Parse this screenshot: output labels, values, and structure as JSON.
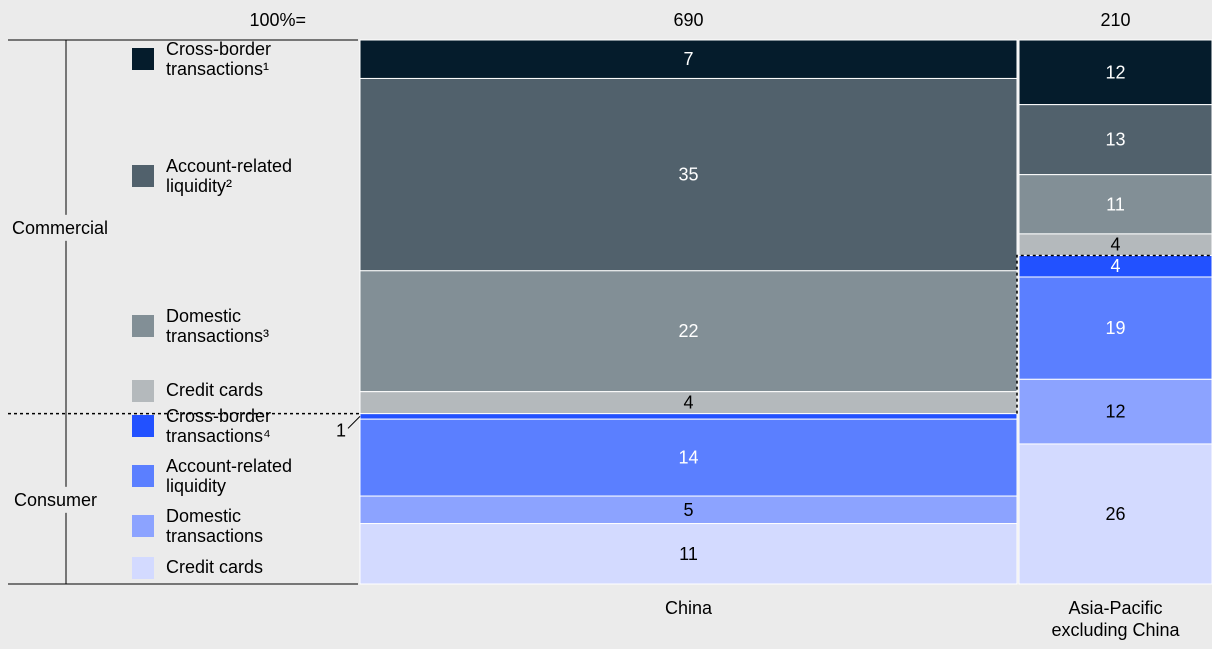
{
  "chart_data": {
    "type": "bar",
    "subtype": "marimekko-stacked-100",
    "total_label": "100%=",
    "categories": [
      "China",
      "Asia-Pacific excluding China"
    ],
    "category_label_lines": [
      [
        "China"
      ],
      [
        "Asia-Pacific",
        "excluding China"
      ]
    ],
    "totals": [
      690,
      210
    ],
    "groups": [
      {
        "name": "Commercial",
        "segments": [
          0,
          1,
          2,
          3
        ]
      },
      {
        "name": "Consumer",
        "segments": [
          4,
          5,
          6,
          7
        ]
      }
    ],
    "series": [
      {
        "group": "Commercial",
        "label_lines": [
          "Cross-border",
          "transactions¹"
        ],
        "color": "#051c2c",
        "values": [
          7,
          12
        ]
      },
      {
        "group": "Commercial",
        "label_lines": [
          "Account-related",
          "liquidity²"
        ],
        "color": "#51616c",
        "values": [
          35,
          13
        ]
      },
      {
        "group": "Commercial",
        "label_lines": [
          "Domestic",
          "transactions³"
        ],
        "color": "#828f96",
        "values": [
          22,
          11
        ]
      },
      {
        "group": "Commercial",
        "label_lines": [
          "Credit cards"
        ],
        "color": "#b4b9bc",
        "values": [
          4,
          4
        ]
      },
      {
        "group": "Consumer",
        "label_lines": [
          "Cross-border",
          "transactions⁴"
        ],
        "color": "#2251ff",
        "values": [
          1,
          4
        ]
      },
      {
        "group": "Consumer",
        "label_lines": [
          "Account-related",
          "liquidity"
        ],
        "color": "#5b7fff",
        "values": [
          14,
          19
        ]
      },
      {
        "group": "Consumer",
        "label_lines": [
          "Domestic",
          "transactions"
        ],
        "color": "#8ca3ff",
        "values": [
          5,
          12
        ]
      },
      {
        "group": "Consumer",
        "label_lines": [
          "Credit cards"
        ],
        "color": "#d3daff",
        "values": [
          11,
          26
        ]
      }
    ],
    "ylim": [
      0,
      100
    ],
    "grid": false,
    "legend_position": "left"
  }
}
